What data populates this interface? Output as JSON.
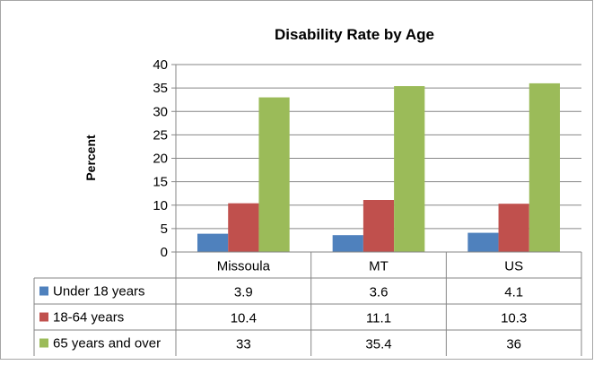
{
  "chart_data": {
    "type": "bar",
    "title": "Disability Rate by Age",
    "ylabel": "Percent",
    "xlabel": "",
    "categories": [
      "Missoula",
      "MT",
      "US"
    ],
    "ylim": [
      0,
      40
    ],
    "yticks": [
      0,
      5,
      10,
      15,
      20,
      25,
      30,
      35,
      40
    ],
    "grid": true,
    "legend": "data table",
    "series": [
      {
        "name": "Under 18 years",
        "color": "#4f81bd",
        "values": [
          3.9,
          3.6,
          4.1
        ],
        "labels": [
          "3.9",
          "3.6",
          "4.1"
        ]
      },
      {
        "name": "18-64 years",
        "color": "#c0504d",
        "values": [
          10.4,
          11.1,
          10.3
        ],
        "labels": [
          "10.4",
          "11.1",
          "10.3"
        ]
      },
      {
        "name": "65 years and over",
        "color": "#9bbb59",
        "values": [
          33,
          35.4,
          36
        ],
        "labels": [
          "33",
          "35.4",
          "36"
        ]
      }
    ]
  }
}
